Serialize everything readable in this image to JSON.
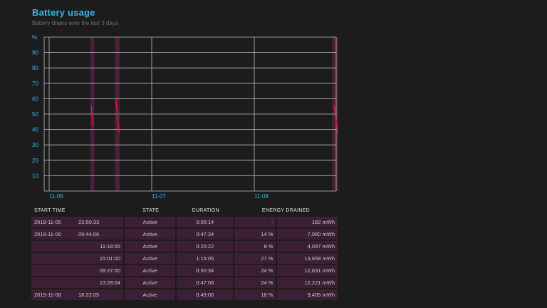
{
  "header": {
    "title": "Battery usage",
    "subtitle": "Battery drains over the last 3 days"
  },
  "chart_data": {
    "type": "line",
    "ylabel": "%",
    "ylim": [
      0,
      100
    ],
    "y_ticks": [
      "10",
      "20",
      "30",
      "40",
      "50",
      "60",
      "70",
      "80",
      "90"
    ],
    "x_ticks": [
      "11-06",
      "11-07",
      "11-08"
    ],
    "grid": true,
    "drain_bands": [
      {
        "start": 0.4,
        "end": 0.44
      },
      {
        "start": 0.64,
        "end": 0.69
      },
      {
        "start": 2.76,
        "end": 2.82
      }
    ],
    "series": [
      {
        "points": [
          [
            0.41,
            56
          ],
          [
            0.43,
            42
          ]
        ]
      },
      {
        "points": [
          [
            0.65,
            60
          ],
          [
            0.68,
            38
          ]
        ]
      },
      {
        "points": [
          [
            2.78,
            56
          ],
          [
            2.81,
            38
          ]
        ]
      }
    ],
    "colors": {
      "line": "#d4233c",
      "band": "#4a1f38",
      "grid": "#bdbdbd",
      "axis_label": "#35b6e6"
    }
  },
  "table": {
    "headers": [
      "START TIME",
      "STATE",
      "DURATION",
      "ENERGY DRAINED"
    ],
    "rows": [
      {
        "date": "2019-11-05",
        "time": "23:50:33",
        "state": "Active",
        "duration": "0:00:14",
        "percent": "-",
        "energy": "182 mWh"
      },
      {
        "date": "2019-11-06",
        "time": "09:44:06",
        "state": "Active",
        "duration": "0:47:34",
        "percent": "14 %",
        "energy": "7,080 mWh"
      },
      {
        "date": "",
        "time": "11:18:55",
        "state": "Active",
        "duration": "0:20:22",
        "percent": "8 %",
        "energy": "4,047 mWh"
      },
      {
        "date": "",
        "time": "15:01:00",
        "state": "Active",
        "duration": "1:15:05",
        "percent": "27 %",
        "energy": "13,658 mWh"
      },
      {
        "date": "",
        "time": "09:27:00",
        "state": "Active",
        "duration": "0:50:34",
        "percent": "24 %",
        "energy": "12,631 mWh"
      },
      {
        "date": "",
        "time": "13:28:04",
        "state": "Active",
        "duration": "0:47:08",
        "percent": "24 %",
        "energy": "12,221 mWh"
      },
      {
        "date": "2019-11-08",
        "time": "18:22:05",
        "state": "Active",
        "duration": "0:49:00",
        "percent": "18 %",
        "energy": "9,405 mWh"
      }
    ]
  }
}
